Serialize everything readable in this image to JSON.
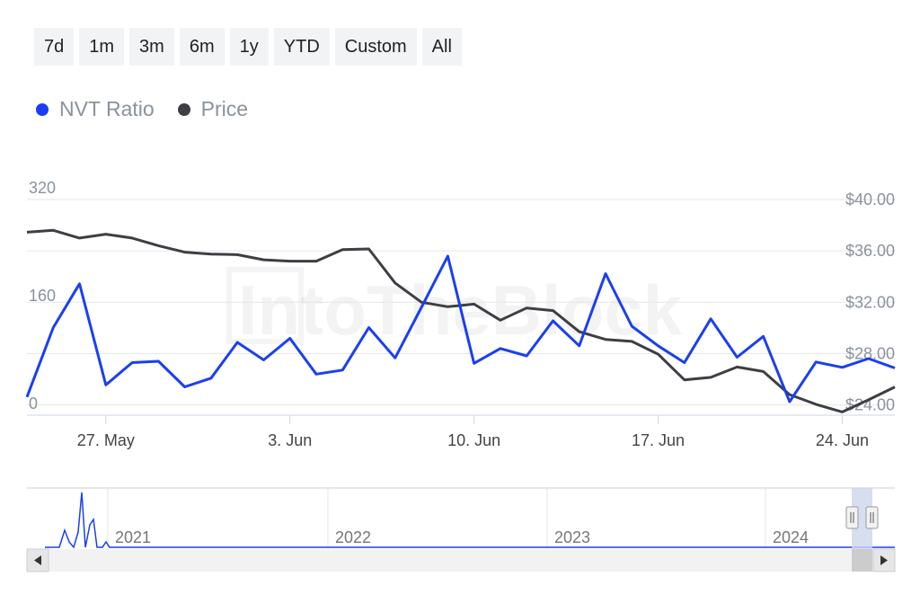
{
  "range_buttons": [
    "7d",
    "1m",
    "3m",
    "6m",
    "1y",
    "YTD",
    "Custom",
    "All"
  ],
  "watermark": "IntoTheBlock",
  "chart_data": {
    "type": "line",
    "series": [
      {
        "name": "NVT Ratio",
        "axis": "left",
        "color": "#1a3ff2",
        "points": [
          {
            "x": "2024-05-24",
            "y": 27
          },
          {
            "x": "2024-05-25",
            "y": 130
          },
          {
            "x": "2024-05-26",
            "y": 195
          },
          {
            "x": "2024-05-27",
            "y": 45
          },
          {
            "x": "2024-05-28",
            "y": 78
          },
          {
            "x": "2024-05-29",
            "y": 80
          },
          {
            "x": "2024-05-30",
            "y": 42
          },
          {
            "x": "2024-05-31",
            "y": 55
          },
          {
            "x": "2024-06-01",
            "y": 108
          },
          {
            "x": "2024-06-02",
            "y": 82
          },
          {
            "x": "2024-06-03",
            "y": 114
          },
          {
            "x": "2024-06-04",
            "y": 61
          },
          {
            "x": "2024-06-05",
            "y": 67
          },
          {
            "x": "2024-06-06",
            "y": 130
          },
          {
            "x": "2024-06-07",
            "y": 85
          },
          {
            "x": "2024-06-08",
            "y": 160
          },
          {
            "x": "2024-06-09",
            "y": 236
          },
          {
            "x": "2024-06-10",
            "y": 77
          },
          {
            "x": "2024-06-11",
            "y": 99
          },
          {
            "x": "2024-06-12",
            "y": 88
          },
          {
            "x": "2024-06-13",
            "y": 140
          },
          {
            "x": "2024-06-14",
            "y": 103
          },
          {
            "x": "2024-06-15",
            "y": 210
          },
          {
            "x": "2024-06-16",
            "y": 132
          },
          {
            "x": "2024-06-17",
            "y": 103
          },
          {
            "x": "2024-06-18",
            "y": 78
          },
          {
            "x": "2024-06-19",
            "y": 143
          },
          {
            "x": "2024-06-20",
            "y": 86
          },
          {
            "x": "2024-06-21",
            "y": 117
          },
          {
            "x": "2024-06-22",
            "y": 20
          },
          {
            "x": "2024-06-23",
            "y": 79
          },
          {
            "x": "2024-06-24",
            "y": 71
          },
          {
            "x": "2024-06-25",
            "y": 84
          },
          {
            "x": "2024-06-26",
            "y": 70
          }
        ]
      },
      {
        "name": "Price",
        "axis": "right",
        "color": "#3d3f44",
        "points": [
          {
            "x": "2024-05-24",
            "y": 37.45
          },
          {
            "x": "2024-05-25",
            "y": 37.6
          },
          {
            "x": "2024-05-26",
            "y": 37.0
          },
          {
            "x": "2024-05-27",
            "y": 37.3
          },
          {
            "x": "2024-05-28",
            "y": 37.0
          },
          {
            "x": "2024-05-29",
            "y": 36.4
          },
          {
            "x": "2024-05-30",
            "y": 35.9
          },
          {
            "x": "2024-05-31",
            "y": 35.75
          },
          {
            "x": "2024-06-01",
            "y": 35.7
          },
          {
            "x": "2024-06-02",
            "y": 35.3
          },
          {
            "x": "2024-06-03",
            "y": 35.2
          },
          {
            "x": "2024-06-04",
            "y": 35.2
          },
          {
            "x": "2024-06-05",
            "y": 36.1
          },
          {
            "x": "2024-06-06",
            "y": 36.15
          },
          {
            "x": "2024-06-07",
            "y": 33.5
          },
          {
            "x": "2024-06-08",
            "y": 32.0
          },
          {
            "x": "2024-06-09",
            "y": 31.65
          },
          {
            "x": "2024-06-10",
            "y": 31.85
          },
          {
            "x": "2024-06-11",
            "y": 30.6
          },
          {
            "x": "2024-06-12",
            "y": 31.55
          },
          {
            "x": "2024-06-13",
            "y": 31.35
          },
          {
            "x": "2024-06-14",
            "y": 29.7
          },
          {
            "x": "2024-06-15",
            "y": 29.1
          },
          {
            "x": "2024-06-16",
            "y": 28.95
          },
          {
            "x": "2024-06-17",
            "y": 27.95
          },
          {
            "x": "2024-06-18",
            "y": 25.95
          },
          {
            "x": "2024-06-19",
            "y": 26.15
          },
          {
            "x": "2024-06-20",
            "y": 26.95
          },
          {
            "x": "2024-06-21",
            "y": 26.6
          },
          {
            "x": "2024-06-22",
            "y": 24.8
          },
          {
            "x": "2024-06-23",
            "y": 24.05
          },
          {
            "x": "2024-06-24",
            "y": 23.45
          },
          {
            "x": "2024-06-25",
            "y": 24.4
          },
          {
            "x": "2024-06-26",
            "y": 25.4
          }
        ]
      }
    ],
    "x_range": [
      "2024-05-24",
      "2024-06-26"
    ],
    "x_ticks": [
      {
        "x": "2024-05-27",
        "label": "27. May"
      },
      {
        "x": "2024-06-03",
        "label": "3. Jun"
      },
      {
        "x": "2024-06-10",
        "label": "10. Jun"
      },
      {
        "x": "2024-06-17",
        "label": "17. Jun"
      },
      {
        "x": "2024-06-24",
        "label": "24. Jun"
      }
    ],
    "y_left": {
      "range": [
        0,
        320
      ],
      "ticks": [
        0,
        160,
        320
      ],
      "tick_labels": [
        "0",
        "160",
        "320"
      ]
    },
    "y_right": {
      "range": [
        23.2,
        40
      ],
      "ticks": [
        24,
        28,
        32,
        36,
        40
      ],
      "tick_labels": [
        "$24.00",
        "$28.00",
        "$32.00",
        "$36.00",
        "$40.00"
      ]
    },
    "grid": true,
    "legend_position": "top-left",
    "navigator": {
      "year_labels": [
        "2021",
        "2022",
        "2023",
        "2024"
      ],
      "series_color": "#1a3ff2",
      "selection": "last month"
    }
  }
}
